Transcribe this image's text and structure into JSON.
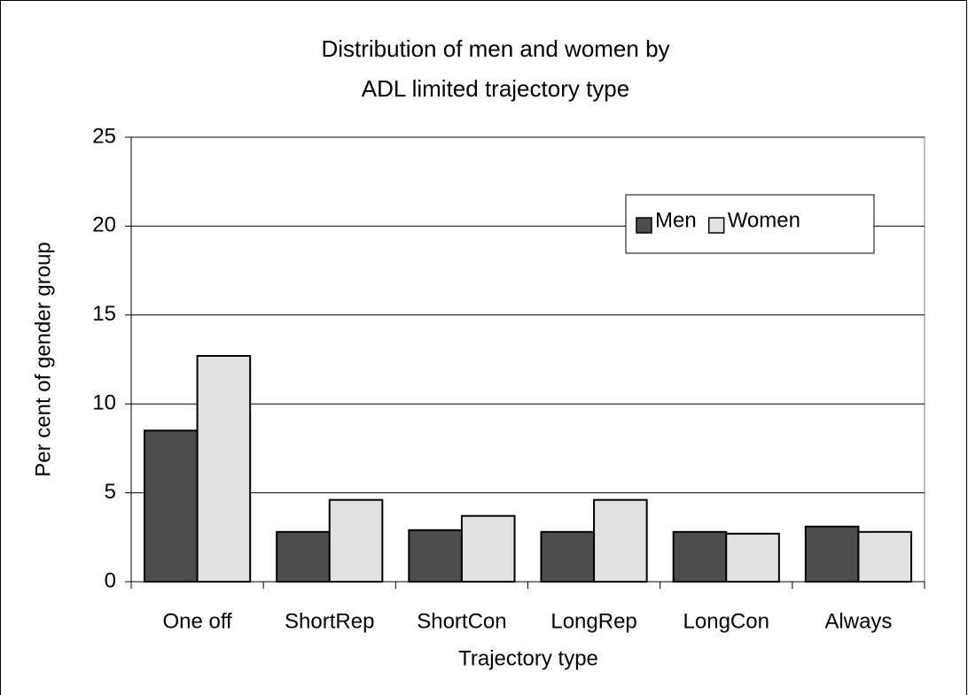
{
  "chart_data": {
    "type": "bar",
    "title": [
      "Distribution of men and women by",
      "ADL limited trajectory type"
    ],
    "x_label": "Trajectory type",
    "y_label": "Per cent of gender group",
    "categories": [
      "One off",
      "ShortRep",
      "ShortCon",
      "LongRep",
      "LongCon",
      "Always"
    ],
    "series": [
      {
        "name": "Men",
        "color": "#4d4d4d",
        "values": [
          8.5,
          2.8,
          2.9,
          2.8,
          2.8,
          3.1
        ]
      },
      {
        "name": "Women",
        "color": "#e2e2e2",
        "values": [
          12.7,
          4.6,
          3.7,
          4.6,
          2.7,
          2.8
        ]
      }
    ],
    "ylim": [
      0,
      25
    ],
    "yticks": [
      0,
      5,
      10,
      15,
      20,
      25
    ],
    "grid": true
  }
}
